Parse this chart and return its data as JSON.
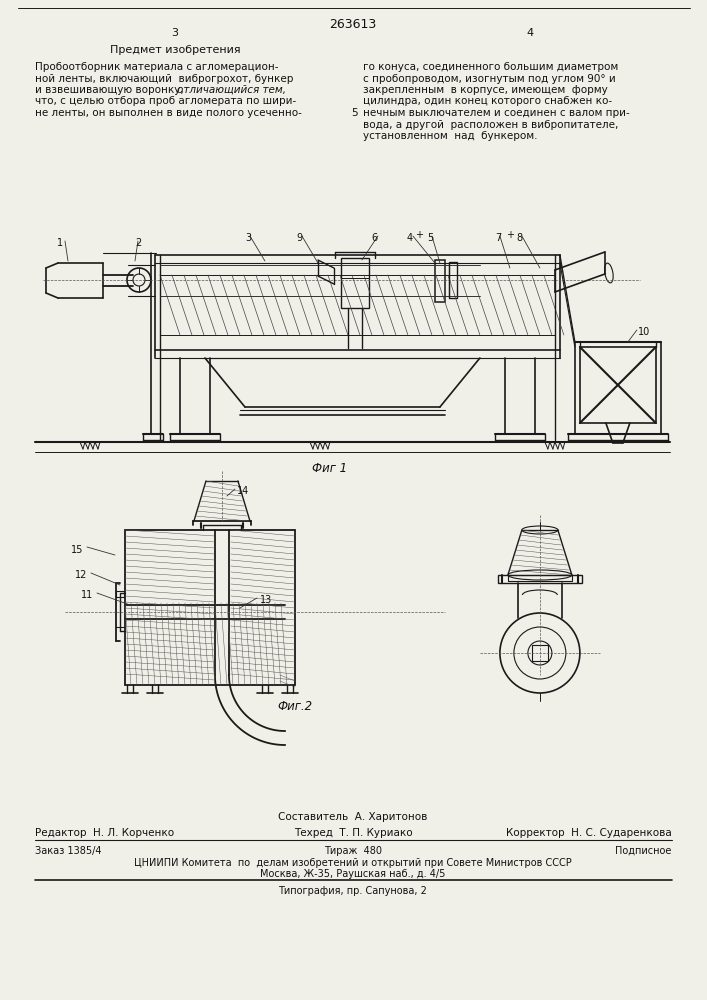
{
  "page_width": 7.07,
  "page_height": 10.0,
  "bg_color": "#f0efe8",
  "patent_number": "263613",
  "page_left": "3",
  "page_right": "4",
  "section_title": "Предмет изобретения",
  "fig1_label": "Фиг 1",
  "fig2_label": "Фиг.2",
  "footer_composer": "Составитель  А. Харитонов",
  "footer_editor": "Редактор  Н. Л. Корченко",
  "footer_tech": "Техред  Т. П. Куриако",
  "footer_corrector": "Корректор  Н. С. Сударенкова",
  "footer_order": "Заказ 1385/4",
  "footer_print": "Тираж  480",
  "footer_sub": "Подписное",
  "footer_org": "ЦНИИПИ Комитета  по  делам изобретений и открытий при Совете Министров СССР",
  "footer_addr": "Москва, Ж-35, Раушская наб., д. 4/5",
  "footer_typo": "Типография, пр. Сапунова, 2"
}
